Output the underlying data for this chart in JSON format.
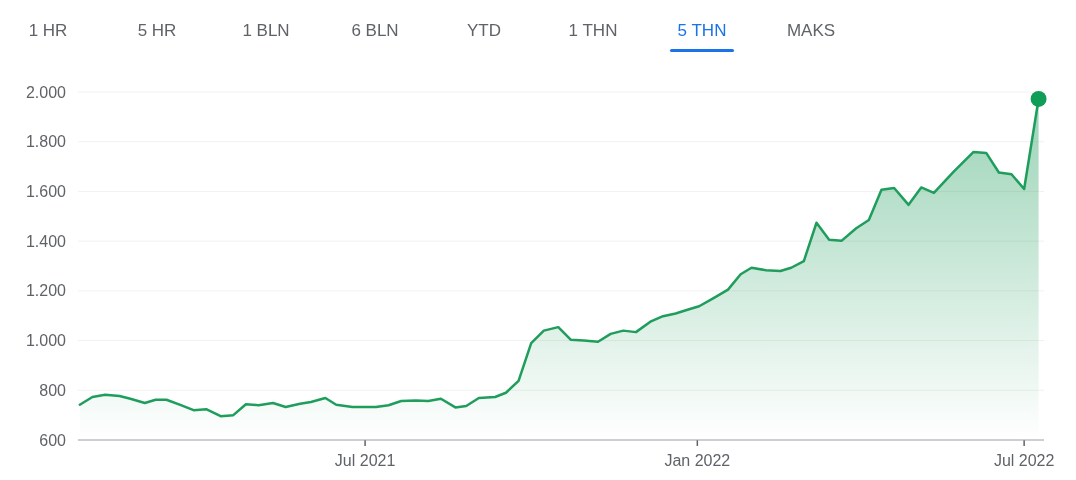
{
  "chart_data": {
    "type": "area",
    "annotations": [
      "1 HR",
      "5 HR",
      "1 BLN",
      "6 BLN",
      "YTD",
      "1 THN",
      "5 THN",
      "MAKS"
    ],
    "x": [
      "2021-01-24",
      "2021-01-31",
      "2021-02-07",
      "2021-02-15",
      "2021-02-21",
      "2021-03-01",
      "2021-03-07",
      "2021-03-13",
      "2021-03-21",
      "2021-03-28",
      "2021-04-04",
      "2021-04-12",
      "2021-04-19",
      "2021-04-26",
      "2021-05-03",
      "2021-05-11",
      "2021-05-18",
      "2021-05-26",
      "2021-06-01",
      "2021-06-09",
      "2021-06-15",
      "2021-06-24",
      "2021-07-07",
      "2021-07-14",
      "2021-07-21",
      "2021-07-29",
      "2021-08-05",
      "2021-08-12",
      "2021-08-20",
      "2021-08-26",
      "2021-09-02",
      "2021-09-11",
      "2021-09-17",
      "2021-09-24",
      "2021-10-01",
      "2021-10-08",
      "2021-10-16",
      "2021-10-23",
      "2021-10-30",
      "2021-11-07",
      "2021-11-14",
      "2021-11-21",
      "2021-11-28",
      "2021-12-06",
      "2021-12-13",
      "2021-12-20",
      "2021-12-27",
      "2022-01-02",
      "2022-01-10",
      "2022-01-18",
      "2022-01-25",
      "2022-01-31",
      "2022-02-08",
      "2022-02-16",
      "2022-02-22",
      "2022-03-01",
      "2022-03-08",
      "2022-03-15",
      "2022-03-22",
      "2022-03-30",
      "2022-04-06",
      "2022-04-13",
      "2022-04-20",
      "2022-04-28",
      "2022-05-05",
      "2022-05-12",
      "2022-05-23",
      "2022-06-03",
      "2022-06-10",
      "2022-06-17",
      "2022-06-24",
      "2022-07-01",
      "2022-07-09"
    ],
    "series": [
      {
        "color": "#1f9d5c",
        "values": [
          742,
          773,
          782,
          777,
          766,
          749,
          762,
          762,
          740,
          720,
          724,
          696,
          700,
          744,
          740,
          749,
          733,
          746,
          753,
          769,
          742,
          733,
          733,
          740,
          757,
          759,
          757,
          766,
          731,
          737,
          769,
          773,
          790,
          838,
          990,
          1040,
          1054,
          1003,
          1000,
          995,
          1027,
          1040,
          1034,
          1076,
          1098,
          1109,
          1125,
          1138,
          1171,
          1205,
          1267,
          1293,
          1283,
          1280,
          1293,
          1320,
          1474,
          1406,
          1402,
          1452,
          1485,
          1607,
          1614,
          1546,
          1616,
          1594,
          1680,
          1759,
          1755,
          1676,
          1669,
          1610,
          1972
        ]
      },
      {
        "type": "scatter",
        "marker": "circle",
        "color": "#0f9d58",
        "x": [
          "2022-07-09"
        ],
        "values": [
          1972
        ]
      }
    ],
    "xlim": [
      "2021-01-23",
      "2022-07-12"
    ],
    "xticks": [
      {
        "value": "2021-07-01",
        "label": "Jul 2021"
      },
      {
        "value": "2022-01-01",
        "label": "Jan 2022"
      },
      {
        "value": "2022-07-01",
        "label": "Jul 2022"
      }
    ],
    "ylim": [
      600,
      2000
    ],
    "yticks": [
      {
        "value": 600,
        "label": "600"
      },
      {
        "value": 800,
        "label": "800"
      },
      {
        "value": 1000,
        "label": "1.000"
      },
      {
        "value": 1200,
        "label": "1.200"
      },
      {
        "value": 1400,
        "label": "1.400"
      },
      {
        "value": 1600,
        "label": "1.600"
      },
      {
        "value": 1800,
        "label": "1.800"
      },
      {
        "value": 2000,
        "label": "2.000"
      }
    ],
    "grid": "y"
  }
}
